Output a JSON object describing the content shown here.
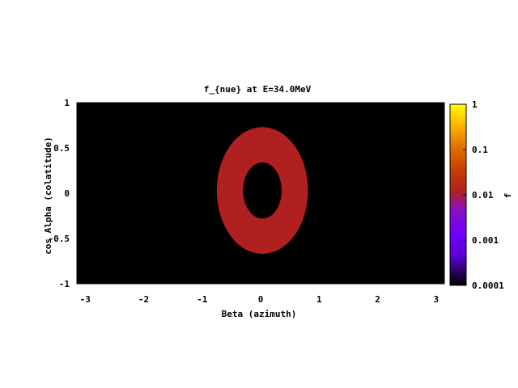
{
  "chart_data": {
    "type": "heatmap",
    "title": "f_{nue} at E=34.0MeV",
    "xlabel": "Beta (azimuth)",
    "ylabel": "cos Alpha (colatitude)",
    "xlim": [
      -3.14159,
      3.14159
    ],
    "ylim": [
      -1,
      1
    ],
    "x_ticks": [
      "-3",
      "-2",
      "-1",
      "0",
      "1",
      "2",
      "3"
    ],
    "x_tick_values": [
      -3,
      -2,
      -1,
      0,
      1,
      2,
      3
    ],
    "y_ticks": [
      "-1",
      "-0.5",
      "0",
      "0.5",
      "1"
    ],
    "y_tick_values": [
      -1,
      -0.5,
      0,
      0.5,
      1
    ],
    "background_value": 0.0001,
    "features": [
      {
        "shape": "ring",
        "value": 0.002,
        "center_beta": 0.03,
        "center_cos_alpha": 0.03,
        "outer_half_width_beta": 0.78,
        "outer_half_height_cos": 0.7,
        "inner_half_width_beta": 0.33,
        "inner_half_height_cos": 0.31
      }
    ],
    "colorbar": {
      "label": "f",
      "scale": "log",
      "range": [
        0.0001,
        1
      ],
      "ticks": [
        "1",
        "0.1",
        "0.01",
        "0.001",
        "0.0001"
      ],
      "tick_values": [
        1,
        0.1,
        0.01,
        0.001,
        0.0001
      ],
      "colormap": [
        "#000000",
        "#7000ff",
        "#b02020",
        "#d26000",
        "#ff8c00",
        "#ffd000",
        "#ffff00"
      ]
    }
  }
}
